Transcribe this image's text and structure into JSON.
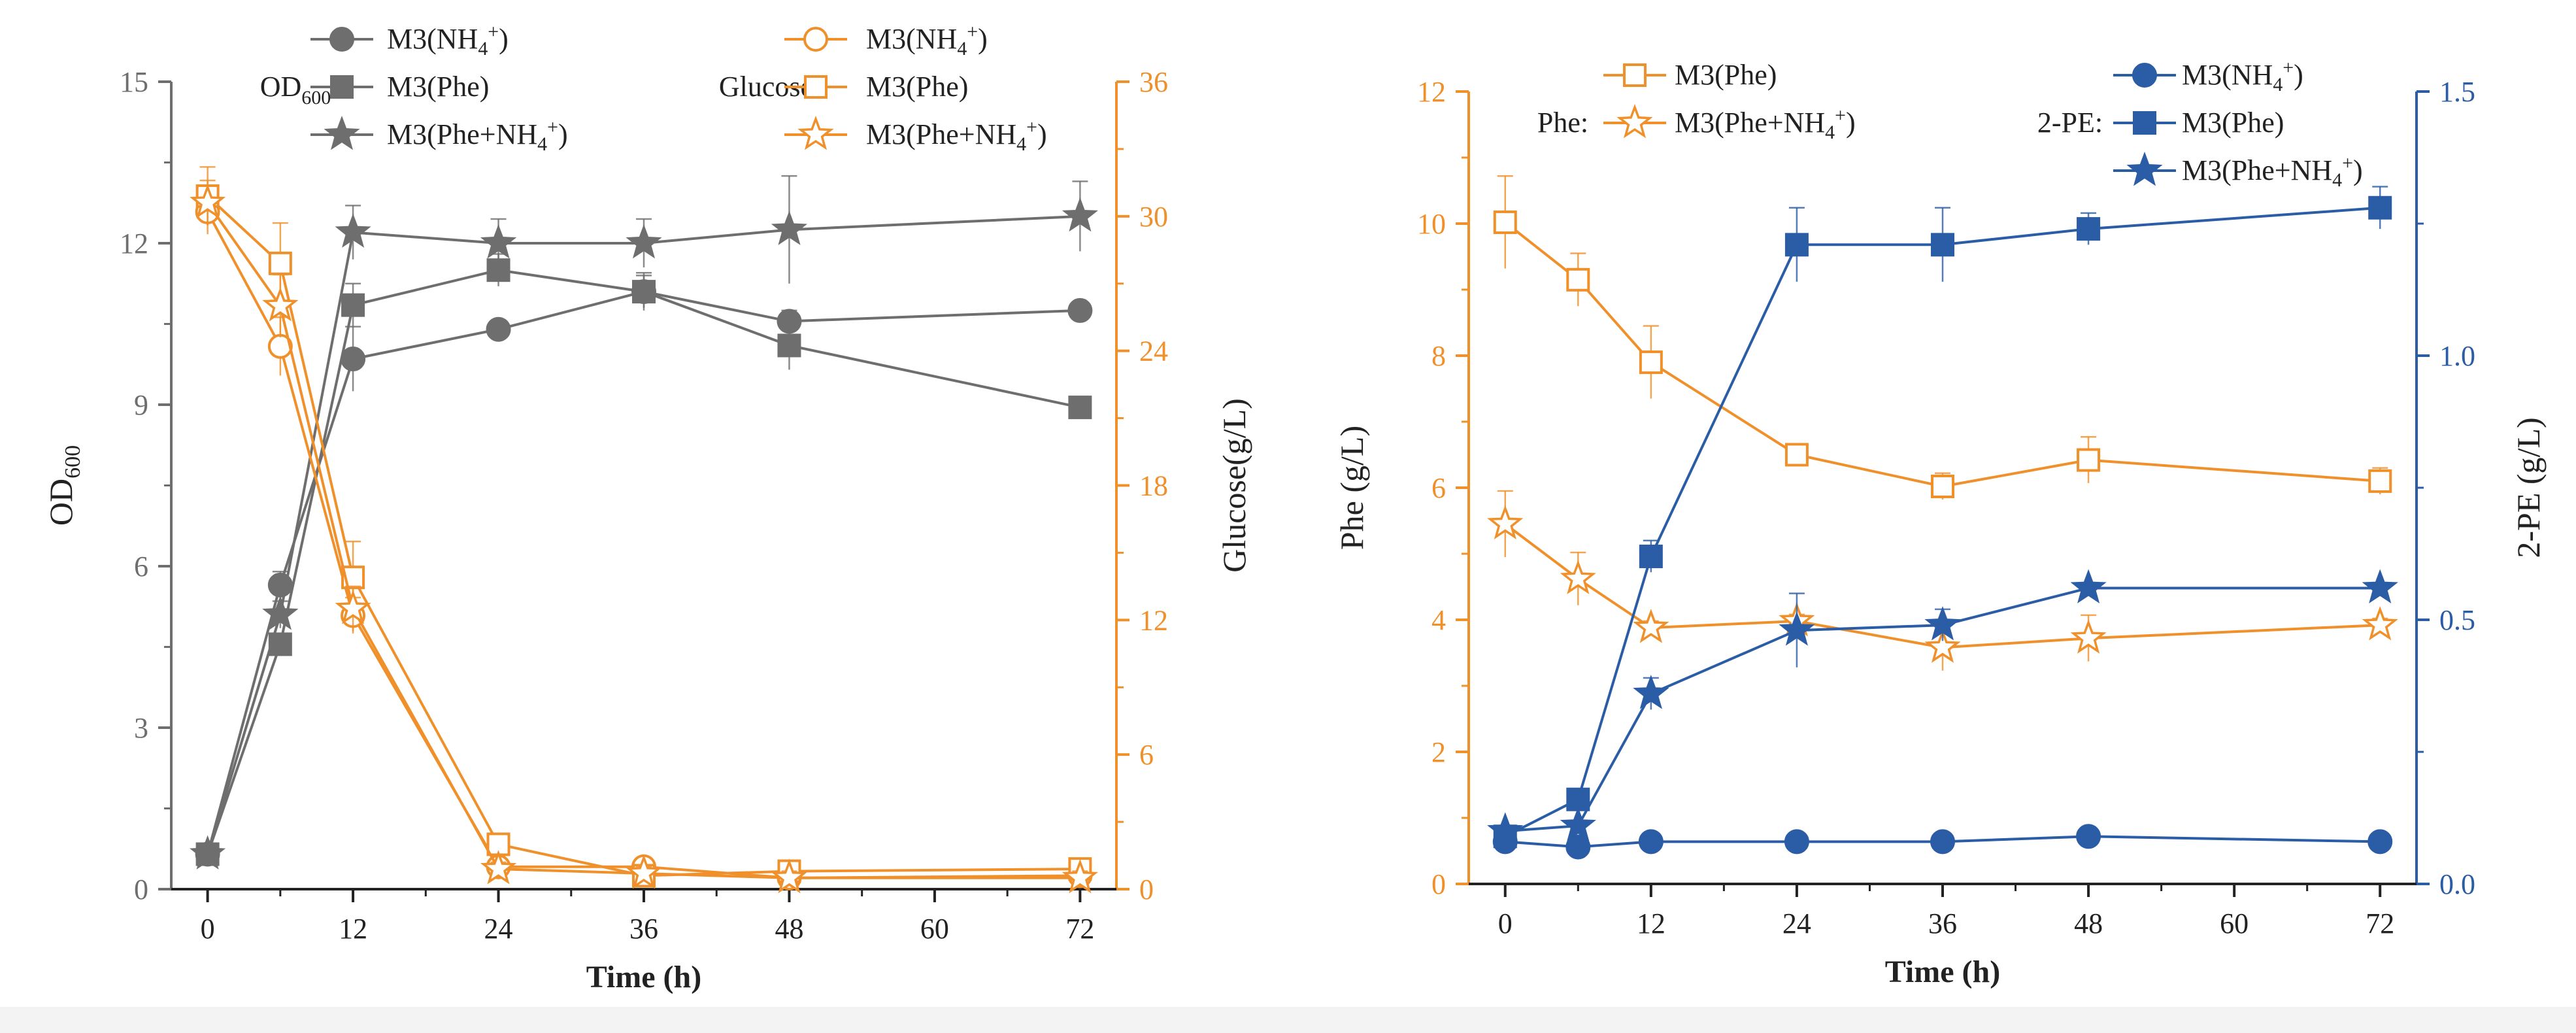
{
  "colors": {
    "gray": "#6e6e6e",
    "orange": "#f0902a",
    "blue": "#2b5ca6",
    "axis": "#222222"
  },
  "chart_data": [
    {
      "type": "line",
      "panel": "left",
      "xlabel": "Time (h)",
      "ylabel_left": {
        "main": "OD",
        "sub": "600"
      },
      "ylabel_right": "Glucose(g/L)",
      "x_ticks": [
        0,
        12,
        24,
        36,
        48,
        60,
        72
      ],
      "xlim": [
        -3,
        75
      ],
      "ylim_left": [
        0,
        15
      ],
      "yticks_left": [
        0,
        3,
        6,
        9,
        12,
        15
      ],
      "ylim_right": [
        0,
        36
      ],
      "yticks_right": [
        0,
        6,
        12,
        18,
        24,
        30,
        36
      ],
      "legend_groups": [
        {
          "label": {
            "main": "OD",
            "sub": "600"
          },
          "color_key": "gray"
        },
        {
          "label": {
            "main": "Glucose",
            "sub": ""
          },
          "color_key": "orange"
        }
      ],
      "series": [
        {
          "name": "M3(NH4+)",
          "label": {
            "pre": "M3(NH",
            "sub": "4",
            "sup": "+",
            "post": ")"
          },
          "axis": "left",
          "color_key": "gray",
          "marker": "circle",
          "filled": true,
          "x": [
            0,
            6,
            12,
            24,
            36,
            48,
            72
          ],
          "y": [
            0.65,
            5.65,
            9.85,
            10.4,
            11.1,
            10.55,
            10.75
          ],
          "err": [
            0.1,
            0.25,
            0.6,
            0.15,
            0.3,
            0.2,
            0.15
          ]
        },
        {
          "name": "M3(Phe)",
          "label": {
            "pre": "M3(Phe)",
            "sub": "",
            "sup": "",
            "post": ""
          },
          "axis": "left",
          "color_key": "gray",
          "marker": "square",
          "filled": true,
          "x": [
            0,
            6,
            12,
            24,
            36,
            48,
            72
          ],
          "y": [
            0.65,
            4.55,
            10.85,
            11.5,
            11.1,
            10.1,
            8.95
          ],
          "err": [
            0.1,
            0.2,
            0.4,
            0.3,
            0.35,
            0.45,
            0.2
          ]
        },
        {
          "name": "M3(Phe+NH4+)",
          "label": {
            "pre": "M3(Phe+NH",
            "sub": "4",
            "sup": "+",
            "post": ")"
          },
          "axis": "left",
          "color_key": "gray",
          "marker": "star",
          "filled": true,
          "x": [
            0,
            6,
            12,
            24,
            36,
            48,
            72
          ],
          "y": [
            0.65,
            5.1,
            12.2,
            12.0,
            12.0,
            12.25,
            12.5
          ],
          "err": [
            0.1,
            0.25,
            0.5,
            0.45,
            0.45,
            1.0,
            0.65
          ]
        },
        {
          "name": "M3(NH4+)",
          "label": {
            "pre": "M3(NH",
            "sub": "4",
            "sup": "+",
            "post": ")"
          },
          "axis": "right",
          "color_key": "orange",
          "marker": "circle",
          "filled": false,
          "x": [
            0,
            6,
            12,
            24,
            36,
            48,
            72
          ],
          "y": [
            30.2,
            24.2,
            12.2,
            1.0,
            1.0,
            0.5,
            0.6
          ],
          "err": [
            1.0,
            1.3,
            0.8,
            0.3,
            0.3,
            0.3,
            0.3
          ]
        },
        {
          "name": "M3(Phe)",
          "label": {
            "pre": "M3(Phe)",
            "sub": "",
            "sup": "",
            "post": ""
          },
          "axis": "right",
          "color_key": "orange",
          "marker": "square",
          "filled": false,
          "x": [
            0,
            6,
            12,
            24,
            36,
            48,
            72
          ],
          "y": [
            30.9,
            27.9,
            13.9,
            2.0,
            0.6,
            0.8,
            0.9
          ],
          "err": [
            1.3,
            1.8,
            1.6,
            0.3,
            0.3,
            0.3,
            0.3
          ]
        },
        {
          "name": "M3(Phe+NH4+)",
          "label": {
            "pre": "M3(Phe+NH",
            "sub": "4",
            "sup": "+",
            "post": ")"
          },
          "axis": "right",
          "color_key": "orange",
          "marker": "star",
          "filled": false,
          "x": [
            0,
            6,
            12,
            24,
            36,
            48,
            72
          ],
          "y": [
            30.6,
            26.0,
            12.5,
            0.9,
            0.7,
            0.5,
            0.5
          ],
          "err": [
            1.0,
            1.4,
            1.0,
            0.3,
            0.3,
            0.3,
            0.3
          ]
        }
      ]
    },
    {
      "type": "line",
      "panel": "right",
      "xlabel": "Time (h)",
      "ylabel_left": {
        "main": "Phe (g/L)",
        "sub": ""
      },
      "ylabel_right": "2-PE (g/L)",
      "x_ticks": [
        0,
        12,
        24,
        36,
        48,
        60,
        72
      ],
      "xlim": [
        -3,
        75
      ],
      "ylim_left": [
        0,
        12
      ],
      "yticks_left": [
        0,
        2,
        4,
        6,
        8,
        10,
        12
      ],
      "ylim_right": [
        0,
        1.5
      ],
      "yticks_right": [
        "0.0",
        "0.5",
        "1.0",
        "1.5"
      ],
      "legend_groups": [
        {
          "label": {
            "main": "Phe:",
            "sub": ""
          },
          "color_key": "orange"
        },
        {
          "label": {
            "main": "2-PE:",
            "sub": ""
          },
          "color_key": "blue"
        }
      ],
      "series": [
        {
          "name": "M3(Phe)",
          "label": {
            "pre": "M3(Phe)",
            "sub": "",
            "sup": "",
            "post": ""
          },
          "axis": "left",
          "color_key": "orange",
          "marker": "square",
          "filled": false,
          "x": [
            0,
            6,
            12,
            24,
            36,
            48,
            72
          ],
          "y": [
            10.02,
            9.15,
            7.9,
            6.5,
            6.02,
            6.42,
            6.1
          ],
          "err": [
            0.7,
            0.4,
            0.55,
            0.1,
            0.2,
            0.35,
            0.2
          ]
        },
        {
          "name": "M3(Phe+NH4+)",
          "label": {
            "pre": "M3(Phe+NH",
            "sub": "4",
            "sup": "+",
            "post": ")"
          },
          "axis": "left",
          "color_key": "orange",
          "marker": "star",
          "filled": false,
          "x": [
            0,
            6,
            12,
            24,
            36,
            48,
            72
          ],
          "y": [
            5.45,
            4.62,
            3.88,
            3.98,
            3.58,
            3.72,
            3.92
          ],
          "err": [
            0.5,
            0.4,
            0.1,
            0.1,
            0.35,
            0.35,
            0.1
          ]
        },
        {
          "name": "M3(NH4+)",
          "label": {
            "pre": "M3(NH",
            "sub": "4",
            "sup": "+",
            "post": ")"
          },
          "axis": "right",
          "color_key": "blue",
          "marker": "circle",
          "filled": true,
          "x": [
            0,
            6,
            12,
            24,
            36,
            48,
            72
          ],
          "y": [
            0.08,
            0.07,
            0.08,
            0.08,
            0.08,
            0.09,
            0.08
          ],
          "err": [
            0.01,
            0.01,
            0.01,
            0.01,
            0.01,
            0.01,
            0.01
          ]
        },
        {
          "name": "M3(Phe)",
          "label": {
            "pre": "M3(Phe)",
            "sub": "",
            "sup": "",
            "post": ""
          },
          "axis": "right",
          "color_key": "blue",
          "marker": "square",
          "filled": true,
          "x": [
            0,
            6,
            12,
            24,
            36,
            48,
            72
          ],
          "y": [
            0.09,
            0.16,
            0.62,
            1.21,
            1.21,
            1.24,
            1.28
          ],
          "err": [
            0.01,
            0.02,
            0.03,
            0.07,
            0.07,
            0.03,
            0.04
          ]
        },
        {
          "name": "M3(Phe+NH4+)",
          "label": {
            "pre": "M3(Phe+NH",
            "sub": "4",
            "sup": "+",
            "post": ")"
          },
          "axis": "right",
          "color_key": "blue",
          "marker": "star",
          "filled": true,
          "x": [
            0,
            6,
            12,
            24,
            36,
            48,
            72
          ],
          "y": [
            0.1,
            0.11,
            0.36,
            0.48,
            0.49,
            0.56,
            0.56
          ],
          "err": [
            0.01,
            0.01,
            0.03,
            0.07,
            0.03,
            0.01,
            0.01
          ]
        }
      ]
    }
  ]
}
